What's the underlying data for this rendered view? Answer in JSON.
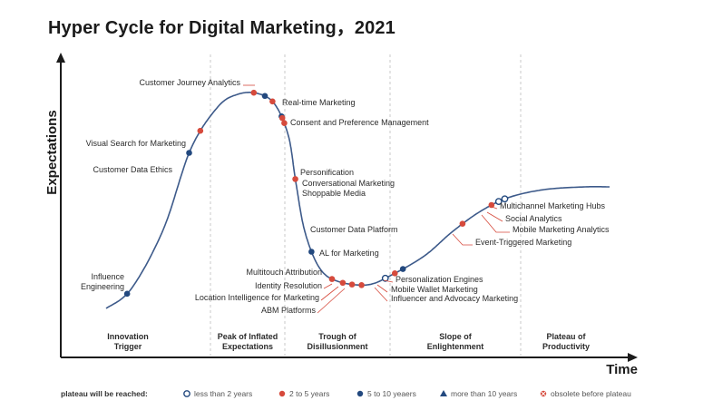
{
  "title": "Hyper Cycle for Digital Marketing，2021",
  "chart_data": {
    "type": "scatter",
    "title": "Hyper Cycle for Digital Marketing，2021",
    "xlabel": "Time",
    "ylabel": "Expectations",
    "phases": [
      [
        "Innovation",
        "Trigger"
      ],
      [
        "Peak of Inflated",
        "Expectations"
      ],
      [
        "Trough of",
        "Disillusionment"
      ],
      [
        "Slope of",
        "Enlightenment"
      ],
      [
        "Plateau of",
        "Productivity"
      ]
    ],
    "colors": {
      "red": "#d64a3c",
      "blue": "#23497f",
      "curve": "#3d5a8a",
      "leader": "#d64a3c",
      "divider": "#bbbbbb"
    },
    "legend": {
      "title": "plateau will be reached:",
      "items": [
        {
          "key": "lt2",
          "label": "less than 2 years"
        },
        {
          "key": "2to5",
          "label": "2 to 5 years"
        },
        {
          "key": "5to10",
          "label": "5 to 10 yeaers"
        },
        {
          "key": "gt10",
          "label": "more than 10 years"
        },
        {
          "key": "obsolete",
          "label": "obsolete before plateau"
        }
      ]
    },
    "points": [
      {
        "name": "Influence Engineering",
        "category": "5to10",
        "t": 0.2
      },
      {
        "name": "Customer Data Ethics",
        "category": "5to10",
        "t": 0.8
      },
      {
        "name": "Visual Search for Marketing",
        "category": "2to5",
        "t": 0.9
      },
      {
        "name": "Customer Journey Analytics",
        "category": "2to5",
        "t": 1.58
      },
      {
        "name": "Real-time Marketing",
        "category": "5to10",
        "t": 1.73
      },
      {
        "name": "Consent and Preference Management",
        "category": "2to5",
        "t": 1.83
      },
      {
        "name": "Personification",
        "category": "5to10",
        "t": 1.96
      },
      {
        "name": "Conversational Marketing",
        "category": "2to5",
        "t": 1.97
      },
      {
        "name": "Shoppable Media",
        "category": "2to5",
        "t": 1.99
      },
      {
        "name": "Customer Data Platform",
        "category": "2to5",
        "t": 2.1
      },
      {
        "name": "AL for Marketing",
        "category": "5to10",
        "t": 2.25
      },
      {
        "name": "Multitouch Attribution",
        "category": "2to5",
        "t": 2.45
      },
      {
        "name": "Identity Resolution",
        "category": "2to5",
        "t": 2.55
      },
      {
        "name": "Location Intelligence for Marketing",
        "category": "2to5",
        "t": 2.64
      },
      {
        "name": "ABM Platforms",
        "category": "2to5",
        "t": 2.73
      },
      {
        "name": "Influencer and Advocacy Marketing",
        "category": "lt2",
        "t": 2.95
      },
      {
        "name": "Mobile Wallet Marketing",
        "category": "2to5",
        "t": 3.04
      },
      {
        "name": "Personalization Engines",
        "category": "5to10",
        "t": 3.1
      },
      {
        "name": "Event-Triggered Marketing",
        "category": "2to5",
        "t": 3.55
      },
      {
        "name": "Mobile Marketing Analytics",
        "category": "2to5",
        "t": 3.78
      },
      {
        "name": "Social Analytics",
        "category": "lt2",
        "t": 3.83
      },
      {
        "name": "Multichannel Marketing Hubs",
        "category": "lt2",
        "t": 3.88
      }
    ]
  }
}
